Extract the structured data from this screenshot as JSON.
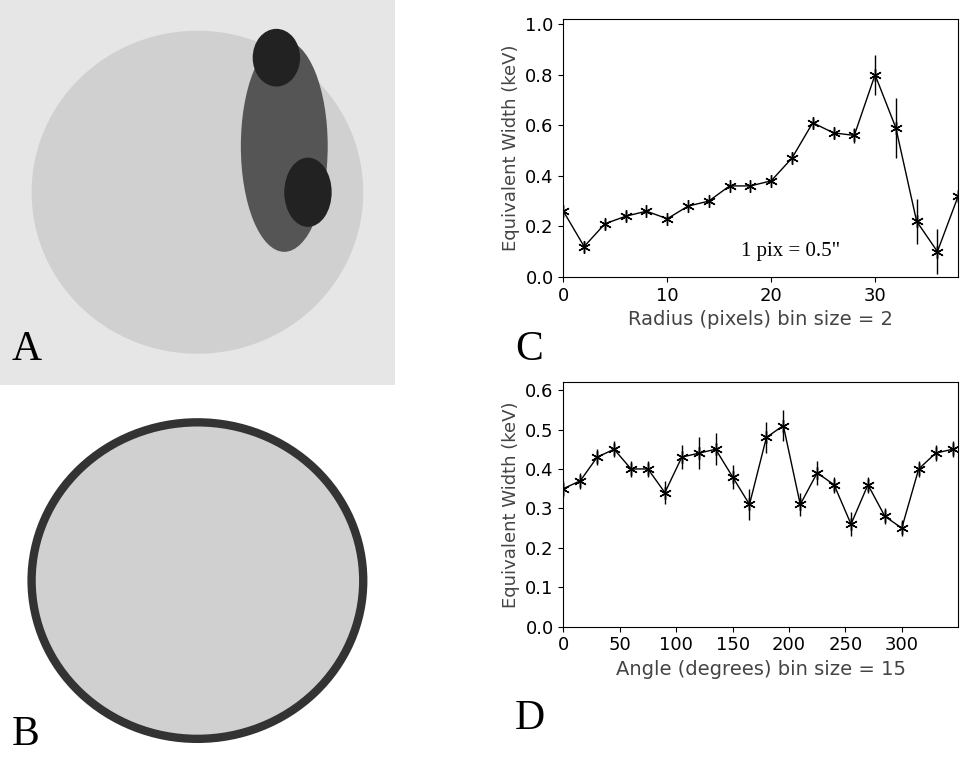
{
  "chart_data": [
    {
      "type": "image",
      "annotations": [
        "A"
      ]
    },
    {
      "type": "image",
      "annotations": [
        "B"
      ]
    },
    {
      "type": "line",
      "annotations": [
        "C",
        "1 pix = 0.5\""
      ],
      "x_label": "Radius (pixels) bin size = 2",
      "y_label": "Equivalent Width (keV)",
      "x": [
        0,
        2,
        4,
        6,
        8,
        10,
        12,
        14,
        16,
        18,
        20,
        22,
        24,
        26,
        28,
        30,
        32,
        34,
        36,
        38
      ],
      "values": [
        0.26,
        0.12,
        0.21,
        0.24,
        0.26,
        0.23,
        0.28,
        0.3,
        0.36,
        0.36,
        0.38,
        0.47,
        0.61,
        0.57,
        0.56,
        0.8,
        0.59,
        0.22,
        0.1,
        0.32
      ],
      "errors": [
        0.01,
        0.02,
        0.02,
        0.02,
        0.01,
        0.01,
        0.01,
        0.01,
        0.01,
        0.01,
        0.01,
        0.02,
        0.02,
        0.02,
        0.03,
        0.08,
        0.12,
        0.09,
        0.09,
        0.02
      ],
      "xlim": [
        0,
        38
      ],
      "xticks": [
        0,
        10,
        20,
        30
      ],
      "ylim": [
        0,
        1.02
      ],
      "yticks": [
        0.0,
        0.2,
        0.4,
        0.6,
        0.8,
        1.0
      ],
      "color": "#000000",
      "marker": "asterisk",
      "line_style": "solid"
    },
    {
      "type": "line",
      "annotations": [
        "D"
      ],
      "x_label": "Angle (degrees) bin size = 15",
      "y_label": "Equivalent Width (keV)",
      "x": [
        0,
        15,
        30,
        45,
        60,
        75,
        90,
        105,
        120,
        135,
        150,
        165,
        180,
        195,
        210,
        225,
        240,
        255,
        270,
        285,
        300,
        315,
        330,
        345
      ],
      "values": [
        0.35,
        0.37,
        0.43,
        0.45,
        0.4,
        0.4,
        0.34,
        0.43,
        0.44,
        0.45,
        0.38,
        0.31,
        0.48,
        0.51,
        0.31,
        0.39,
        0.36,
        0.26,
        0.36,
        0.28,
        0.25,
        0.4,
        0.44,
        0.45
      ],
      "errors": [
        0.02,
        0.02,
        0.02,
        0.02,
        0.02,
        0.02,
        0.03,
        0.03,
        0.04,
        0.04,
        0.03,
        0.04,
        0.04,
        0.04,
        0.03,
        0.03,
        0.02,
        0.03,
        0.02,
        0.02,
        0.02,
        0.02,
        0.02,
        0.02
      ],
      "xlim": [
        0,
        350
      ],
      "xticks": [
        0,
        50,
        100,
        150,
        200,
        250,
        300
      ],
      "ylim": [
        0,
        0.62
      ],
      "yticks": [
        0.0,
        0.1,
        0.2,
        0.3,
        0.4,
        0.5,
        0.6
      ],
      "color": "#000000",
      "marker": "asterisk",
      "line_style": "solid"
    }
  ]
}
